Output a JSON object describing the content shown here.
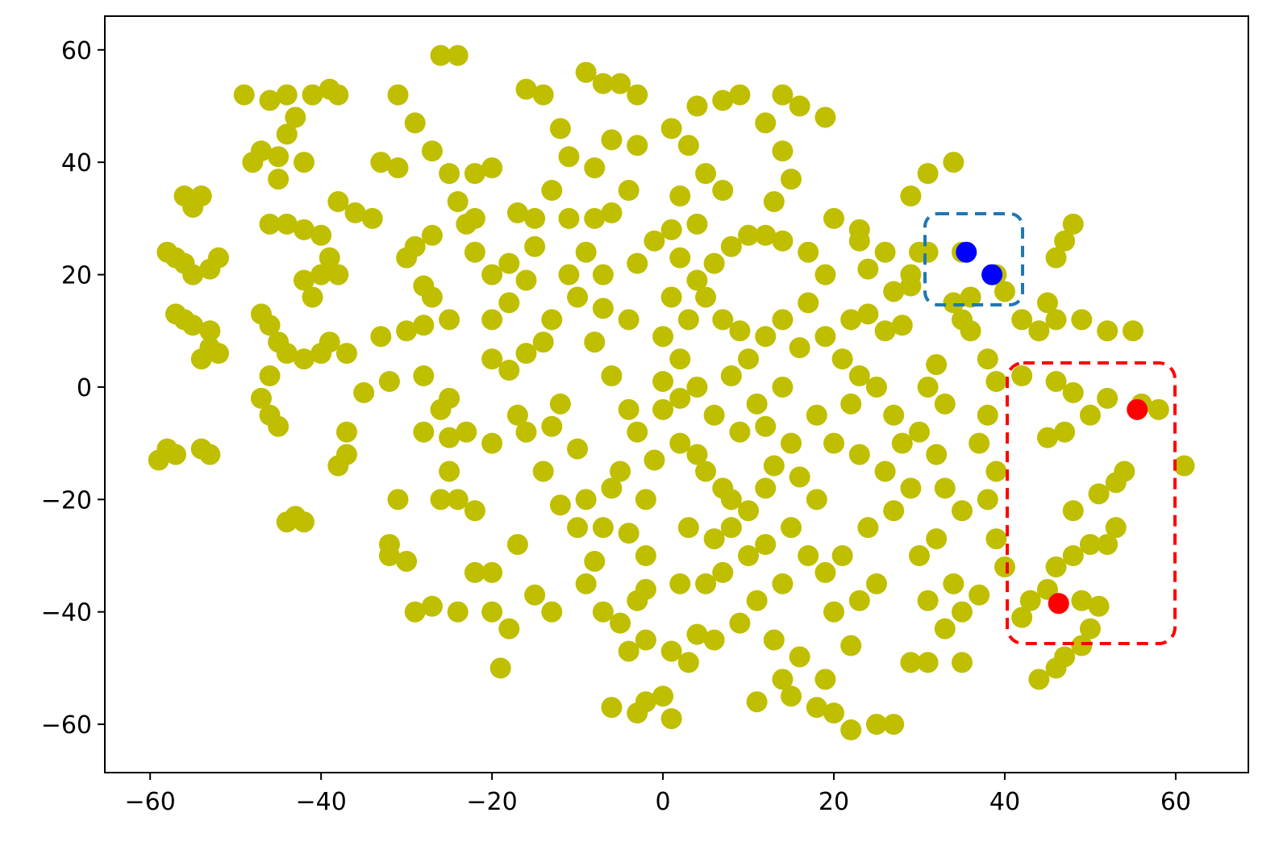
{
  "chart_data": {
    "type": "scatter",
    "xlim": [
      -65.3,
      68.5
    ],
    "ylim": [
      -68.6,
      66
    ],
    "xticks": [
      {
        "value": -60,
        "label": "−60"
      },
      {
        "value": -40,
        "label": "−40"
      },
      {
        "value": -20,
        "label": "−20"
      },
      0,
      20,
      40,
      60
    ],
    "yticks": [
      {
        "value": -60,
        "label": "−60"
      },
      {
        "value": -40,
        "label": "−40"
      },
      {
        "value": -20,
        "label": "−20"
      },
      0,
      20,
      40,
      60
    ],
    "series": [
      {
        "color": "#bfbf00",
        "x": [
          -58,
          -59,
          -57,
          -53,
          -54,
          -56,
          -57,
          -55,
          -53,
          -53,
          -52,
          -54,
          -57,
          -58,
          -56,
          -53,
          -52,
          -55,
          -56,
          -54,
          -55,
          -49,
          -46,
          -44,
          -41,
          -39,
          -38,
          -43,
          -44,
          -45,
          -47,
          -48,
          -45,
          -42,
          -46,
          -44,
          -42,
          -40,
          -39,
          -40,
          -42,
          -41,
          -38,
          -47,
          -46,
          -45,
          -44,
          -42,
          -40,
          -39,
          -37,
          -46,
          -47,
          -46,
          -45,
          -44,
          -43,
          -42,
          -37,
          -37,
          -38,
          -38,
          -36,
          -34,
          -33,
          -31,
          -32,
          -32,
          -30,
          -31,
          -33,
          -30,
          -28,
          -29,
          -27,
          -24,
          -25,
          -26,
          -25,
          -24,
          -22,
          -22,
          -20,
          -20,
          -18,
          -19,
          -17,
          -15,
          -13,
          -26,
          -24,
          -27,
          -25,
          -22,
          -20,
          -24,
          -22,
          -27,
          -29,
          -30,
          -22,
          -20,
          -18,
          -15,
          -16,
          -29,
          -31,
          -28,
          -27,
          -25,
          -20,
          -18,
          -16,
          -14,
          -17,
          -16,
          -13,
          -12,
          -10,
          -9,
          -10,
          -8,
          -9,
          -7,
          -16,
          -14,
          -12,
          -11,
          -13,
          -11,
          -8,
          -9,
          -7,
          -5,
          -3,
          -6,
          -8,
          -6,
          -4,
          -3,
          -10,
          -7,
          -8,
          -6,
          -4,
          -3,
          -5,
          -2,
          -6,
          -4,
          -2,
          -3,
          -5,
          -4,
          -6,
          -3,
          -2,
          0,
          1,
          -2,
          1,
          3,
          4,
          6,
          2,
          5,
          3,
          6,
          8,
          10,
          7,
          12,
          10,
          8,
          12,
          5,
          2,
          0,
          2,
          4,
          6,
          9,
          11,
          14,
          12,
          15,
          13,
          16,
          18,
          15,
          17,
          19,
          14,
          11,
          9,
          13,
          16,
          14,
          11,
          15,
          18,
          20,
          22,
          25,
          27,
          19,
          22,
          20,
          23,
          25,
          21,
          24,
          27,
          29,
          26,
          23,
          20,
          18,
          22,
          25,
          27,
          30,
          32,
          33,
          35,
          32,
          30,
          34,
          31,
          33,
          29,
          31,
          35,
          0,
          2,
          0,
          3,
          1,
          4,
          6,
          8,
          4,
          2,
          5,
          7,
          3,
          1,
          4,
          7,
          9,
          12,
          14,
          16,
          19,
          14,
          15,
          13,
          10,
          12,
          14,
          17,
          19,
          17,
          14,
          12,
          10,
          16,
          19,
          21,
          23,
          22,
          24,
          27,
          29,
          26,
          23,
          20,
          29,
          31,
          34,
          35,
          36,
          38,
          39,
          38,
          37,
          39,
          38,
          39,
          40,
          37,
          35,
          42,
          44,
          46,
          47,
          49,
          43,
          45,
          49,
          51,
          50,
          46,
          48,
          50,
          52,
          53,
          48,
          51,
          53,
          54,
          45,
          47,
          50,
          52,
          48,
          46,
          42,
          42,
          44,
          46,
          49,
          52,
          55,
          56,
          58,
          61,
          48,
          47,
          46,
          45,
          40,
          35,
          39,
          36,
          34,
          31,
          30,
          29,
          24,
          23,
          26,
          28,
          32,
          31,
          33,
          28,
          -1,
          -2,
          -12,
          -14,
          -20,
          -23,
          -28,
          -26,
          -35,
          -32,
          -28,
          -25,
          -18,
          -20,
          -23,
          -17,
          -15,
          -13,
          -11,
          -9,
          -7,
          -4,
          -3,
          -1,
          1,
          2,
          5,
          7,
          9,
          8,
          4,
          7,
          -7
        ],
        "values": [
          -11,
          -13,
          -12,
          -12,
          -11,
          12,
          13,
          11,
          10,
          7,
          6,
          5,
          23,
          24,
          22,
          21,
          23,
          20,
          34,
          34,
          32,
          52,
          51,
          52,
          52,
          53,
          52,
          48,
          45,
          41,
          42,
          40,
          37,
          40,
          29,
          29,
          28,
          27,
          23,
          20,
          19,
          16,
          20,
          13,
          11,
          8,
          6,
          5,
          6,
          8,
          6,
          2,
          -2,
          -5,
          -7,
          -24,
          -23,
          -24,
          -8,
          -12,
          -14,
          33,
          31,
          30,
          40,
          39,
          -28,
          -30,
          -31,
          -20,
          9,
          10,
          11,
          -40,
          -39,
          -40,
          -2,
          -4,
          -15,
          -20,
          -22,
          -33,
          -33,
          -40,
          -43,
          -50,
          -28,
          -37,
          -40,
          59,
          59,
          42,
          38,
          38,
          39,
          33,
          30,
          27,
          25,
          23,
          24,
          20,
          22,
          25,
          19,
          47,
          52,
          18,
          16,
          12,
          5,
          3,
          6,
          8,
          -5,
          -8,
          -7,
          -3,
          -11,
          -20,
          -25,
          -31,
          -35,
          -40,
          53,
          52,
          46,
          41,
          35,
          30,
          30,
          56,
          54,
          54,
          52,
          44,
          39,
          31,
          35,
          43,
          16,
          14,
          8,
          2,
          -4,
          -8,
          -15,
          -20,
          -18,
          -26,
          -30,
          -38,
          -42,
          -47,
          -57,
          -58,
          -56,
          -55,
          -59,
          -45,
          -47,
          -49,
          -44,
          -45,
          -35,
          -35,
          -25,
          -27,
          -25,
          -30,
          -33,
          -28,
          -22,
          -20,
          -18,
          -15,
          -10,
          -4,
          -2,
          0,
          -5,
          -8,
          -3,
          0,
          -7,
          -10,
          -14,
          -16,
          -20,
          -25,
          -30,
          -33,
          -35,
          -38,
          -42,
          -45,
          -48,
          -52,
          -56,
          -55,
          -57,
          -58,
          -61,
          -60,
          -60,
          -52,
          -46,
          -40,
          -38,
          -35,
          -30,
          -25,
          -22,
          -18,
          -15,
          -12,
          -10,
          -5,
          -3,
          0,
          -5,
          -8,
          -12,
          -18,
          -22,
          -27,
          -30,
          -35,
          -38,
          -43,
          -49,
          -49,
          -49,
          1,
          5,
          9,
          12,
          16,
          19,
          22,
          25,
          29,
          34,
          38,
          35,
          43,
          46,
          50,
          51,
          52,
          47,
          52,
          50,
          48,
          42,
          37,
          33,
          27,
          27,
          26,
          24,
          20,
          15,
          12,
          9,
          5,
          7,
          9,
          5,
          2,
          12,
          13,
          17,
          20,
          24,
          28,
          30,
          34,
          38,
          40,
          12,
          10,
          5,
          1,
          -5,
          -10,
          -15,
          -20,
          -27,
          -32,
          -37,
          -40,
          -41,
          -52,
          -50,
          -48,
          -46,
          -38,
          -36,
          -38,
          -39,
          -43,
          -32,
          -30,
          -28,
          -28,
          -25,
          -22,
          -19,
          -17,
          -15,
          -9,
          -8,
          -5,
          -2,
          -1,
          1,
          2,
          12,
          10,
          12,
          12,
          10,
          10,
          -3,
          -4,
          -14,
          29,
          26,
          23,
          15,
          17,
          24,
          20,
          16,
          15,
          24,
          24,
          18,
          21,
          26,
          10,
          11,
          4,
          0,
          -3,
          -10,
          -13,
          -36,
          -21,
          -15,
          -10,
          -8,
          -8,
          -20,
          -1,
          1,
          2,
          -9,
          15,
          12,
          29,
          31,
          30,
          12,
          20,
          24,
          20,
          12,
          22,
          26,
          28,
          23,
          16,
          12,
          10,
          2,
          -12,
          -18,
          -25
        ]
      },
      {
        "color": "#0000ff",
        "x": [
          35.5,
          38.5
        ],
        "values": [
          24,
          20
        ]
      },
      {
        "color": "#ff0000",
        "x": [
          46.3,
          55.5
        ],
        "values": [
          -38.5,
          -4
        ]
      }
    ]
  }
}
